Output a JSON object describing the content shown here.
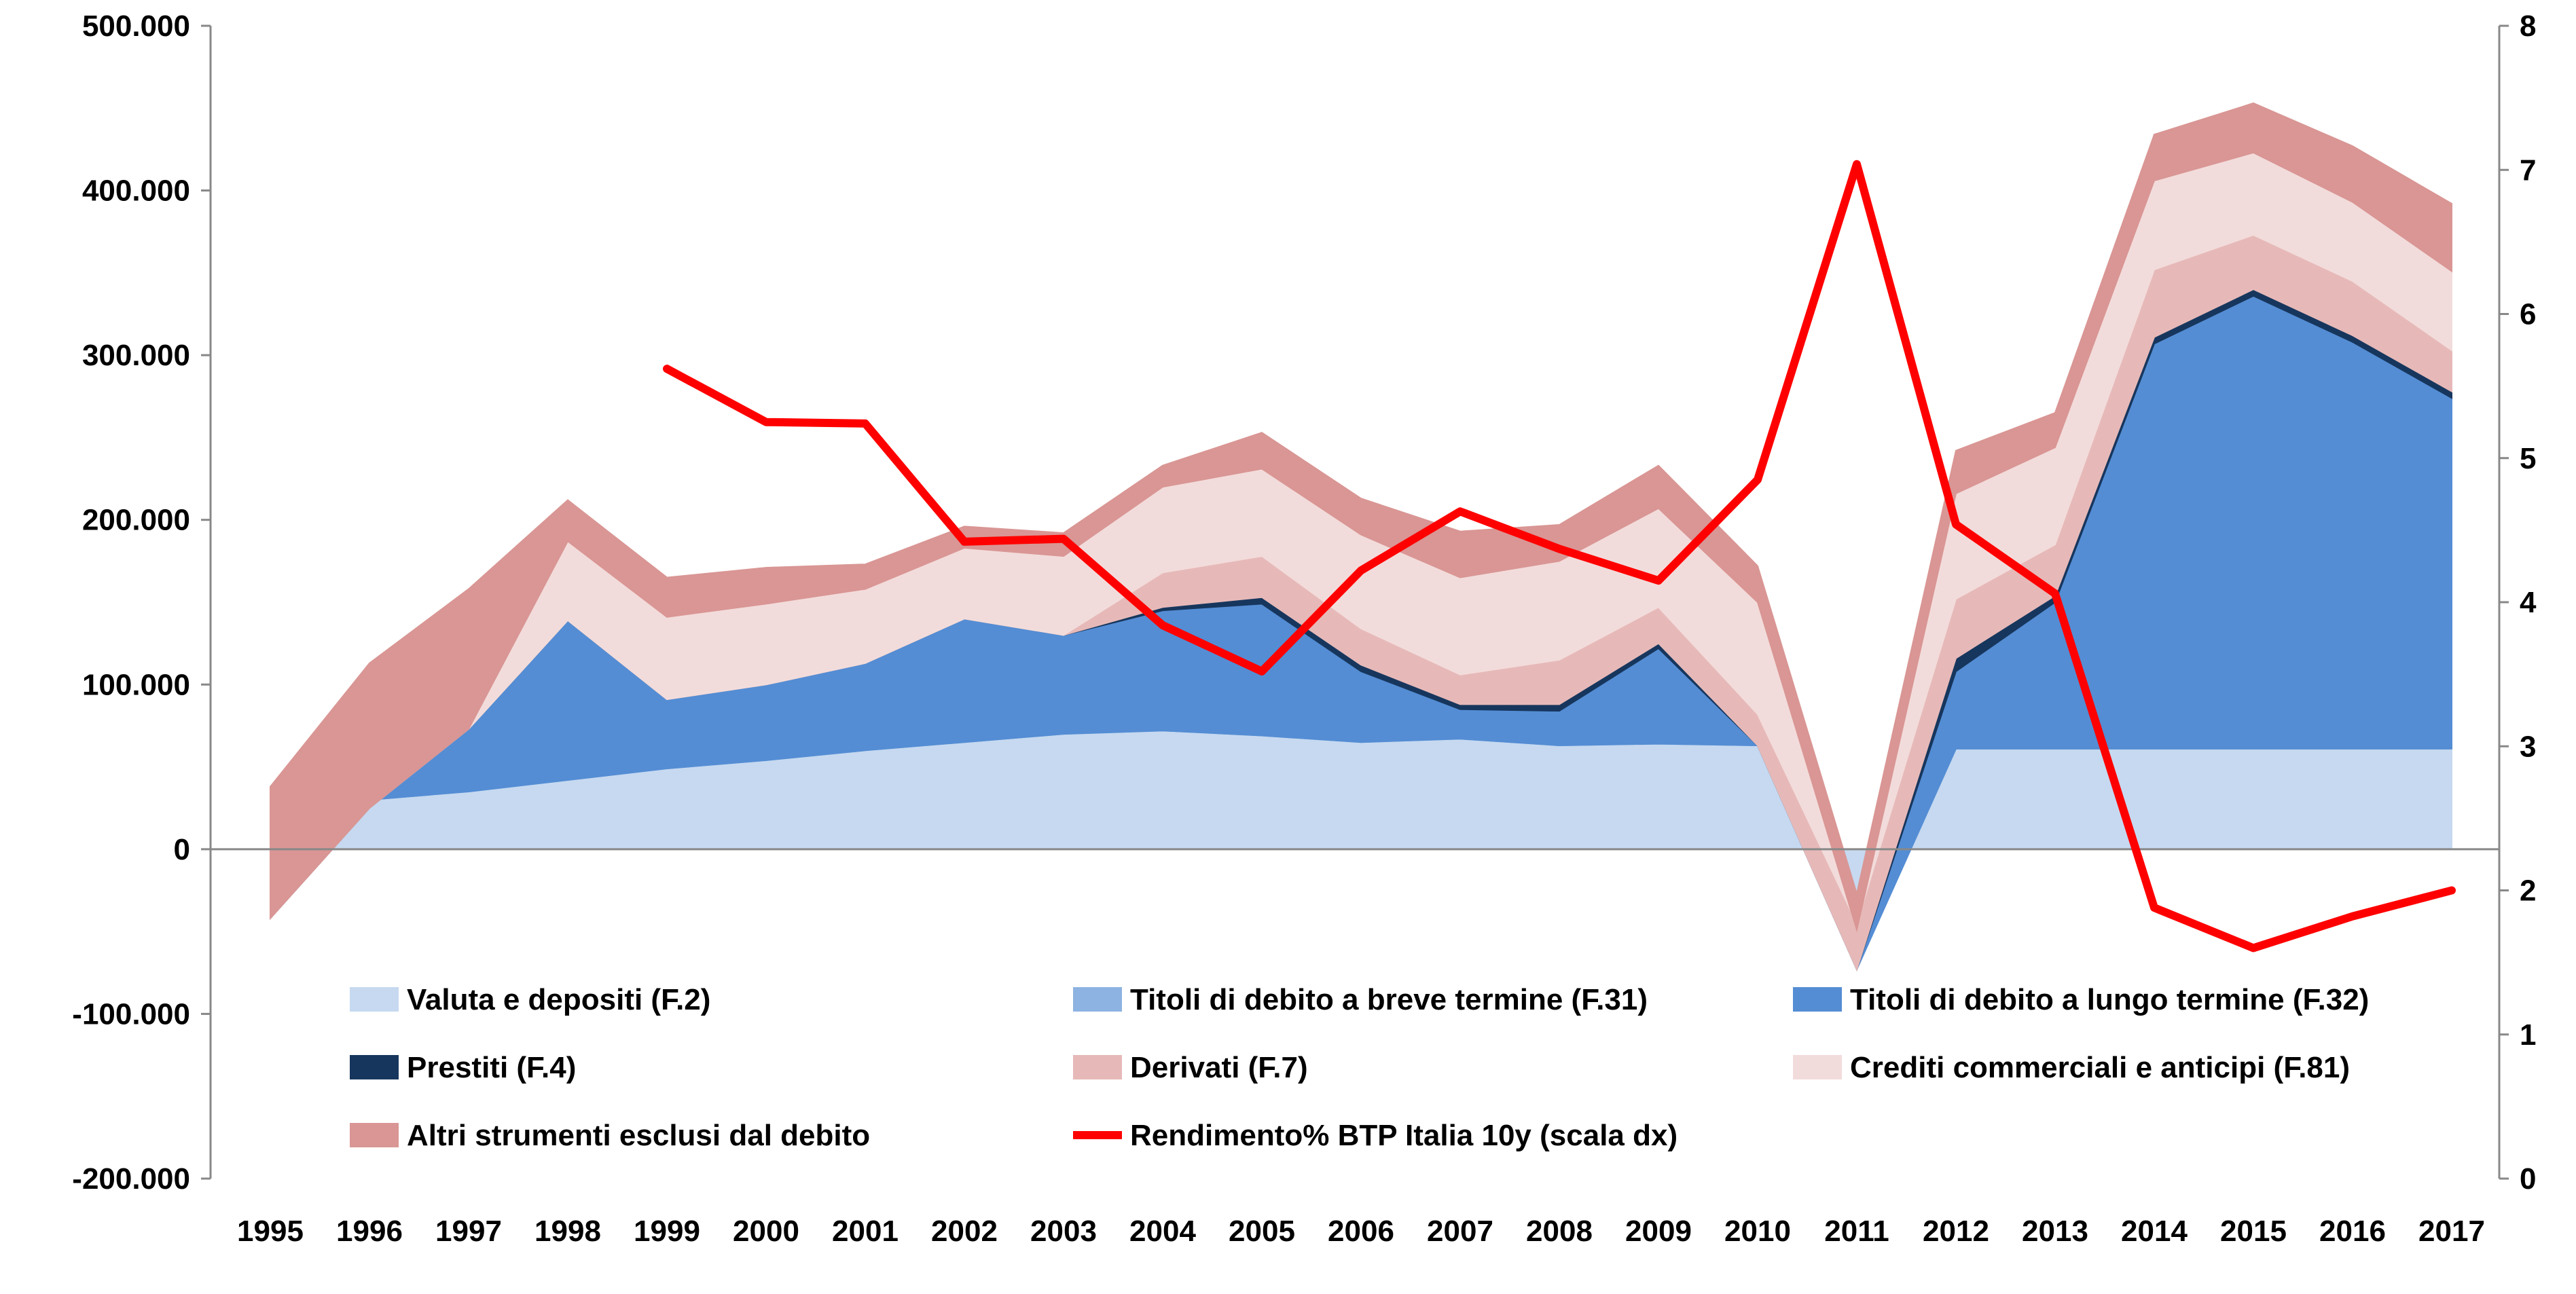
{
  "chart_data": {
    "type": "area",
    "title": "",
    "xlabel": "",
    "ylabel": "",
    "y2label": "",
    "grid": false,
    "legend_position": "bottom-inside",
    "x": [
      "1995",
      "1996",
      "1997",
      "1998",
      "1999",
      "2000",
      "2001",
      "2002",
      "2003",
      "2004",
      "2005",
      "2006",
      "2007",
      "2008",
      "2009",
      "2010",
      "2011",
      "2012",
      "2013",
      "2014",
      "2015",
      "2016",
      "2017"
    ],
    "ylim": [
      -200000,
      500000
    ],
    "y2lim": [
      0,
      8
    ],
    "y_ticks": [
      "-200.000",
      "-100.000",
      "0",
      "100.000",
      "200.000",
      "300.000",
      "400.000",
      "500.000"
    ],
    "y_tick_values": [
      -200000,
      -100000,
      0,
      100000,
      200000,
      300000,
      400000,
      500000
    ],
    "y2_ticks": [
      "0",
      "1",
      "2",
      "3",
      "4",
      "5",
      "6",
      "7",
      "8"
    ],
    "y2_tick_values": [
      0,
      1,
      2,
      3,
      4,
      5,
      6,
      7,
      8
    ],
    "series": [
      {
        "name": "Valuta e depositi (F.2)",
        "kind": "area",
        "color": "#c6d9f0",
        "values": [
          -42000,
          30000,
          35000,
          42000,
          49000,
          54000,
          60000,
          65000,
          70000,
          72000,
          69000,
          65000,
          67000,
          63000,
          64000,
          63000,
          -68000,
          61000,
          61000,
          61000,
          61000,
          61000,
          61000
        ]
      },
      {
        "name": "Titoli di debito a breve termine (F.31)",
        "kind": "area",
        "color": "#8db3e2",
        "values": [
          0,
          0,
          0,
          0,
          0,
          0,
          0,
          0,
          0,
          0,
          0,
          0,
          0,
          0,
          0,
          0,
          -5000,
          0,
          0,
          0,
          0,
          0,
          0
        ]
      },
      {
        "name": "Titoli di debito a lungo termine (F.32)",
        "kind": "area",
        "color": "#548dd4",
        "values": [
          0,
          -5000,
          38000,
          97000,
          42000,
          46000,
          53000,
          75000,
          60000,
          73000,
          80000,
          43000,
          18000,
          21000,
          58000,
          0,
          0,
          47000,
          89000,
          246000,
          275000,
          247000,
          213000
        ]
      },
      {
        "name": "Prestiti (F.4)",
        "kind": "area",
        "color": "#17365d",
        "values": [
          0,
          0,
          0,
          0,
          0,
          0,
          0,
          0,
          0,
          2000,
          4000,
          4000,
          3000,
          4000,
          3000,
          0,
          0,
          8000,
          4000,
          4000,
          4000,
          4000,
          4000
        ]
      },
      {
        "name": "Derivati (F.7)",
        "kind": "area",
        "color": "#e6b9b8",
        "values": [
          0,
          0,
          0,
          0,
          0,
          0,
          0,
          0,
          0,
          21000,
          25000,
          22000,
          18000,
          27000,
          22000,
          19000,
          28000,
          36000,
          31000,
          41000,
          33000,
          33000,
          25000
        ]
      },
      {
        "name": "Crediti commerciali e anticipi (F.81)",
        "kind": "area",
        "color": "#f2dcdb",
        "values": [
          0,
          0,
          0,
          48000,
          50000,
          49000,
          45000,
          43000,
          48000,
          52000,
          53000,
          57000,
          59000,
          60000,
          60000,
          68000,
          -4000,
          64000,
          59000,
          54000,
          50000,
          48000,
          48000
        ]
      },
      {
        "name": "Altri strumenti esclusi dal debito",
        "kind": "area",
        "color": "#d99694",
        "values": [
          80000,
          88000,
          85000,
          25000,
          24000,
          22000,
          15000,
          13000,
          14000,
          13000,
          22000,
          22000,
          28000,
          22000,
          26000,
          22000,
          22000,
          26000,
          21000,
          28000,
          30000,
          34000,
          41000
        ]
      },
      {
        "name": "Rendimento% BTP Italia 10y (scala dx)",
        "kind": "line",
        "axis": "right",
        "color": "#ff0000",
        "values": [
          null,
          null,
          null,
          null,
          5.62,
          5.25,
          5.24,
          4.42,
          4.44,
          3.84,
          3.52,
          4.22,
          4.63,
          4.37,
          4.15,
          4.85,
          7.04,
          4.54,
          4.06,
          1.88,
          1.6,
          1.82,
          2.0
        ]
      }
    ]
  }
}
